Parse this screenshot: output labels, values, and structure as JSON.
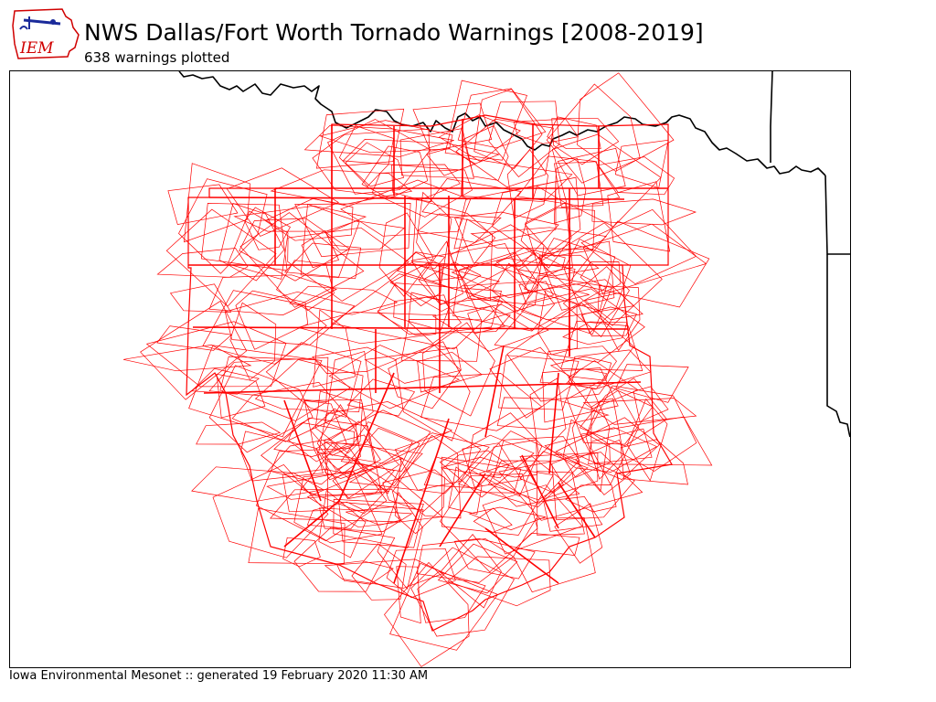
{
  "header": {
    "title": "NWS Dallas/Fort Worth Tornado Warnings [2008-2019]",
    "subtitle": "638 warnings plotted",
    "logo_text": "IEM"
  },
  "footer": {
    "credit": "Iowa Environmental Mesonet :: generated 19 February 2020 11:30 AM"
  },
  "map": {
    "warning_color": "#ff0000",
    "boundary_color": "#000000",
    "legend": "none"
  }
}
